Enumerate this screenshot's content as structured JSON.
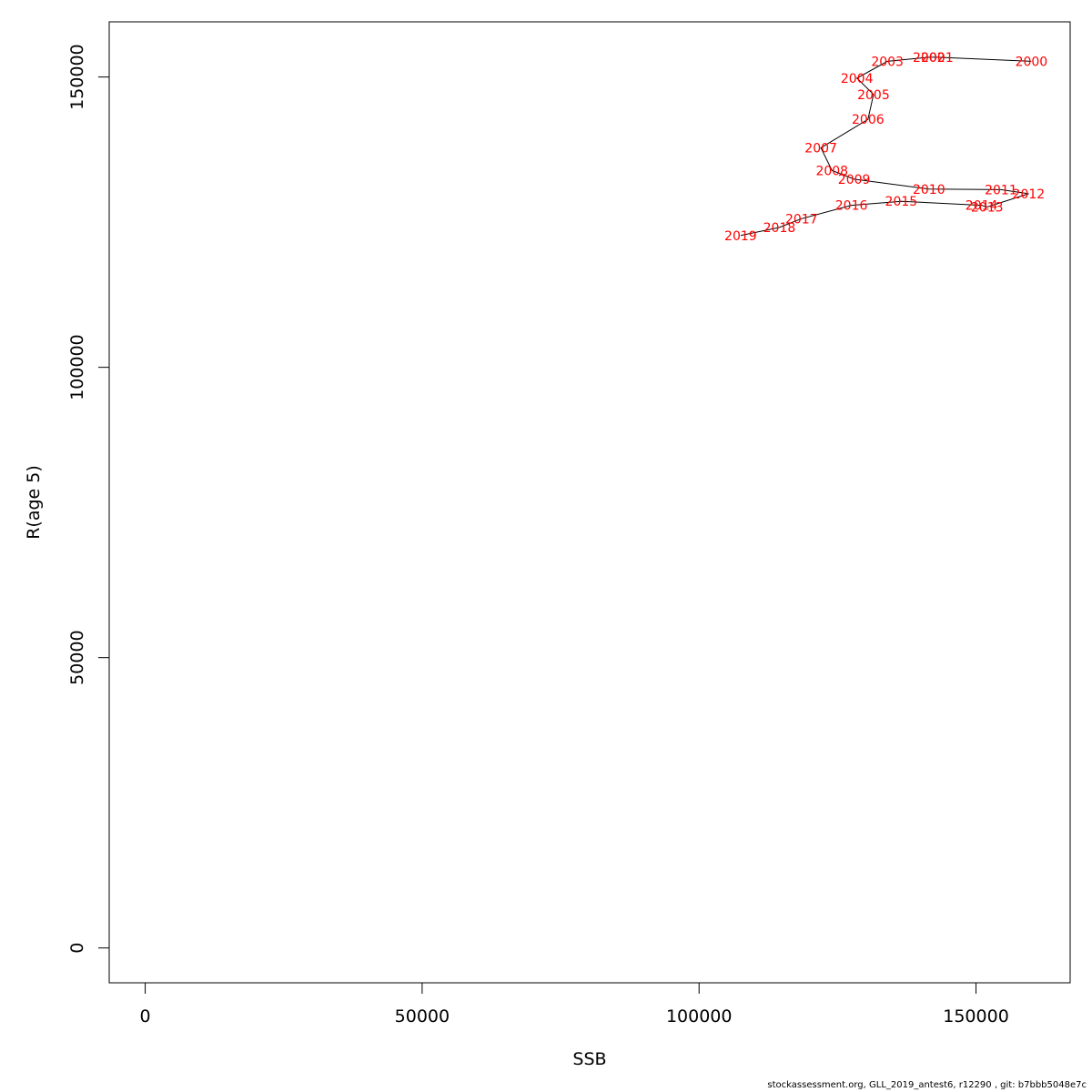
{
  "chart_data": {
    "type": "line",
    "xlabel": "SSB",
    "ylabel": "R(age 5)",
    "xlim": [
      -6500,
      167000
    ],
    "ylim": [
      -6000,
      159500
    ],
    "x_ticks": [
      0,
      50000,
      100000,
      150000
    ],
    "y_ticks": [
      0,
      50000,
      100000,
      150000
    ],
    "x_tick_labels": [
      "0",
      "50000",
      "100000",
      "150000"
    ],
    "y_tick_labels": [
      "0",
      "50000",
      "100000",
      "150000"
    ],
    "grid": false,
    "label_color": "#ff0000",
    "line_color": "#000000",
    "points": [
      {
        "year": "2000",
        "x": 160000,
        "y": 152700
      },
      {
        "year": "2001",
        "x": 143000,
        "y": 153400
      },
      {
        "year": "2002",
        "x": 141500,
        "y": 153400
      },
      {
        "year": "2003",
        "x": 134000,
        "y": 152700
      },
      {
        "year": "2004",
        "x": 128500,
        "y": 149800
      },
      {
        "year": "2005",
        "x": 131500,
        "y": 147000
      },
      {
        "year": "2006",
        "x": 130500,
        "y": 142700
      },
      {
        "year": "2007",
        "x": 122000,
        "y": 137800
      },
      {
        "year": "2008",
        "x": 124000,
        "y": 133900
      },
      {
        "year": "2009",
        "x": 128000,
        "y": 132400
      },
      {
        "year": "2010",
        "x": 141500,
        "y": 130700
      },
      {
        "year": "2011",
        "x": 154500,
        "y": 130600
      },
      {
        "year": "2012",
        "x": 159500,
        "y": 129900
      },
      {
        "year": "2013",
        "x": 152000,
        "y": 127600
      },
      {
        "year": "2014",
        "x": 151000,
        "y": 127900
      },
      {
        "year": "2015",
        "x": 136500,
        "y": 128600
      },
      {
        "year": "2016",
        "x": 127500,
        "y": 127900
      },
      {
        "year": "2017",
        "x": 118500,
        "y": 125600
      },
      {
        "year": "2018",
        "x": 114500,
        "y": 124100
      },
      {
        "year": "2019",
        "x": 107500,
        "y": 122700
      }
    ]
  },
  "footer": "stockassessment.org, GLL_2019_antest6, r12290 , git: b7bbb5048e7c"
}
